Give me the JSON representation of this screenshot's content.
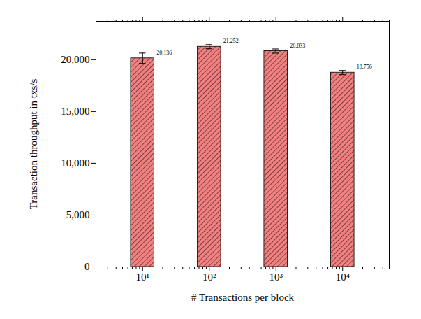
{
  "chart_data": {
    "type": "bar",
    "x_label": "# Transactions per block",
    "y_label": "Transaction throughput in txs/s",
    "x": [
      10,
      100,
      1000,
      10000
    ],
    "values": [
      20136,
      21252,
      20833,
      18756
    ],
    "value_labels": [
      "20,136",
      "21,252",
      "20,833",
      "18,756"
    ],
    "errors": [
      500,
      200,
      200,
      200
    ],
    "color": "#f28080",
    "log": "x",
    "data_labels": true,
    "xlim": [
      2,
      50000
    ],
    "xticks": [
      {
        "value": 10,
        "label": "10¹"
      },
      {
        "value": 100,
        "label": "10²"
      },
      {
        "value": 1000,
        "label": "10³"
      },
      {
        "value": 10000,
        "label": "10⁴"
      }
    ],
    "ylim": [
      0,
      23700
    ],
    "yticks": [
      0,
      {
        "value": 5000,
        "label": "5,000"
      },
      {
        "value": 10000,
        "label": "10,000"
      },
      {
        "value": 15000,
        "label": "15,000"
      },
      {
        "value": 20000,
        "label": "20,000"
      }
    ]
  }
}
